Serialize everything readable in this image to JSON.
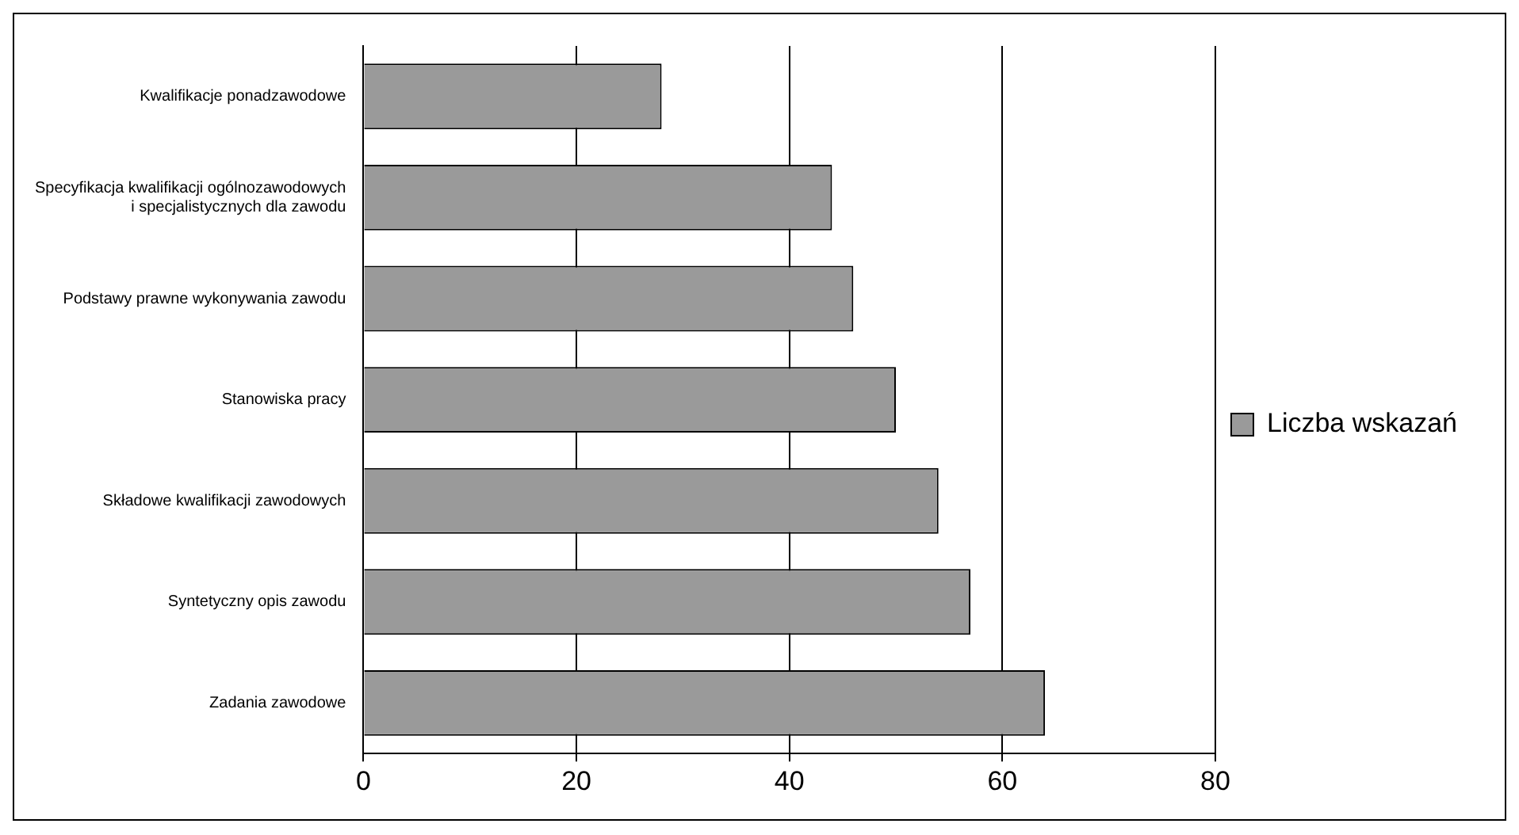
{
  "chart_data": {
    "type": "bar",
    "orientation": "horizontal",
    "categories": [
      "Kwalifikacje ponadzawodowe",
      "Specyfikacja kwalifikacji ogólnozawodowych i specjalistycznych dla zawodu",
      "Podstawy prawne wykonywania zawodu",
      "Stanowiska pracy",
      "Składowe kwalifikacji zawodowych",
      "Syntetyczny opis zawodu",
      "Zadania zawodowe"
    ],
    "series": [
      {
        "name": "Liczba wskazań",
        "color": "#9a9a9a",
        "values": [
          28,
          44,
          46,
          50,
          54,
          57,
          64
        ]
      }
    ],
    "xlim": [
      0,
      80
    ],
    "xticks": [
      0,
      20,
      40,
      60,
      80
    ],
    "grid": "x",
    "legend": "right"
  }
}
